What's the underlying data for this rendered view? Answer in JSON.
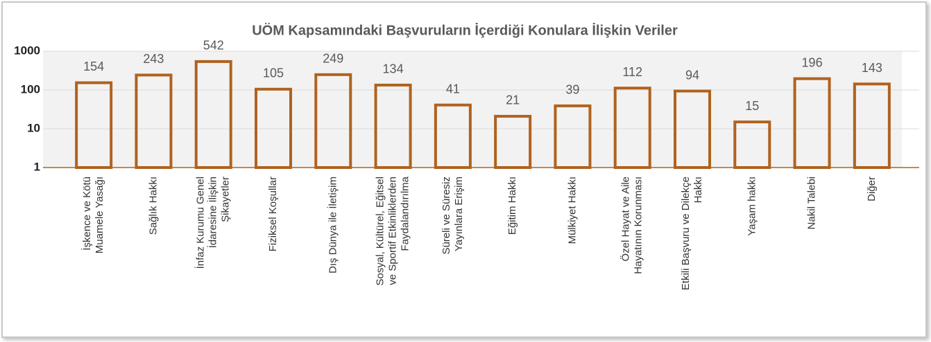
{
  "chart_data": {
    "type": "bar",
    "title": "UÖM Kapsamındaki Başvuruların İçerdiği Konulara İlişkin Veriler",
    "categories": [
      "İşkence ve Kötü\nMuamele Yasağı",
      "Sağlık Hakkı",
      "İnfaz Kurumu Genel\nİdaresine İlişkin\nŞikayetler",
      "Fiziksel Koşullar",
      "Dış Dünya ile İletişim",
      "Sosyal, Kültürel, Eğitsel\nve Sportif Etkinliklerden\nFaydalandırılma",
      "Süreli ve Süresiz\nYayınlara Erişim",
      "Eğitim Hakkı",
      "Mülkiyet Hakkı",
      "Özel Hayat ve Aile\nHayatının Korunması",
      "Etkili Başvuru ve Dilekçe\nHakkı",
      "Yaşam hakkı",
      "Nakil Talebi",
      "Diğer"
    ],
    "values": [
      154,
      243,
      542,
      105,
      249,
      134,
      41,
      21,
      39,
      112,
      94,
      15,
      196,
      143
    ],
    "color": "#b0621f",
    "ylim": [
      1,
      1000
    ],
    "yticks": [
      1,
      10,
      100,
      1000
    ],
    "log_scale": true,
    "grid": true
  }
}
